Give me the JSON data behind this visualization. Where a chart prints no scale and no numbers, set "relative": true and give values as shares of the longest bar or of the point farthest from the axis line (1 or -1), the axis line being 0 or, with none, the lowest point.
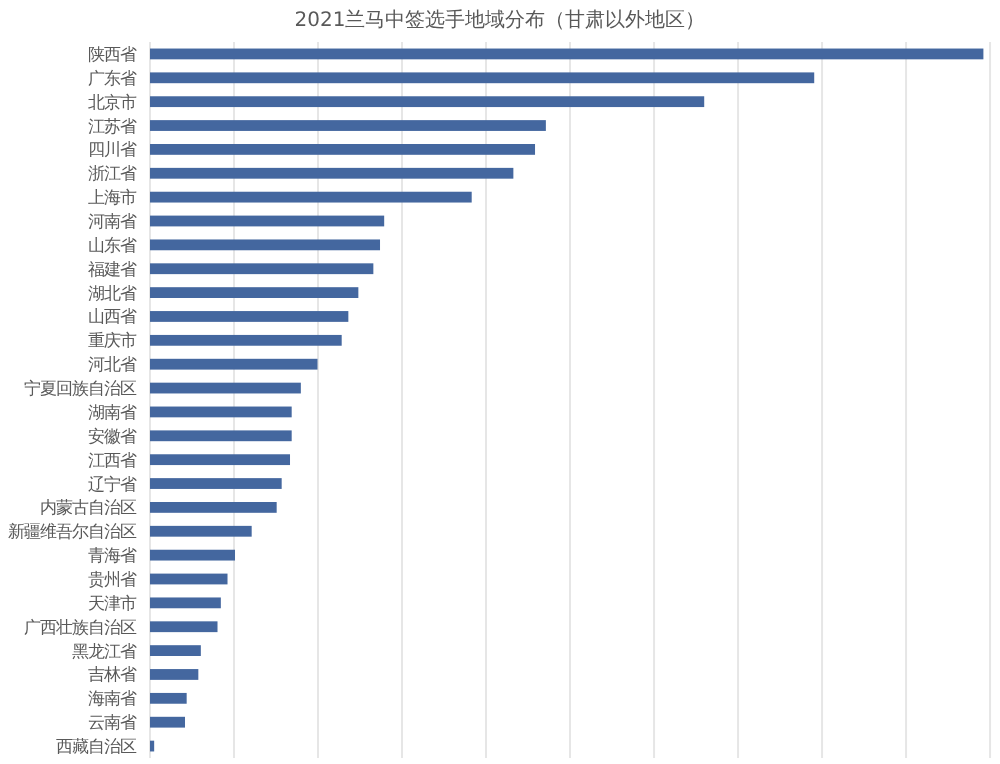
{
  "chart_data": {
    "type": "bar",
    "orientation": "horizontal",
    "relative": true,
    "grid": "x",
    "title": "2021兰马中签选手地域分布（甘肃以外地区）",
    "color": "#44679f",
    "categories": [
      "陕西省",
      "广东省",
      "北京市",
      "江苏省",
      "四川省",
      "浙江省",
      "上海市",
      "河南省",
      "山东省",
      "福建省",
      "湖北省",
      "山西省",
      "重庆市",
      "河北省",
      "宁夏回族自治区",
      "湖南省",
      "安徽省",
      "江西省",
      "辽宁省",
      "内蒙古自治区",
      "新疆维吾尔自治区",
      "青海省",
      "贵州省",
      "天津市",
      "广西壮族自治区",
      "黑龙江省",
      "吉林省",
      "海南省",
      "云南省",
      "西藏自治区"
    ],
    "values": [
      1,
      0.797,
      0.665,
      0.475,
      0.462,
      0.436,
      0.386,
      0.281,
      0.276,
      0.268,
      0.25,
      0.238,
      0.23,
      0.201,
      0.181,
      0.17,
      0.17,
      0.168,
      0.158,
      0.152,
      0.122,
      0.102,
      0.093,
      0.085,
      0.081,
      0.061,
      0.058,
      0.044,
      0.042,
      0.005
    ]
  }
}
